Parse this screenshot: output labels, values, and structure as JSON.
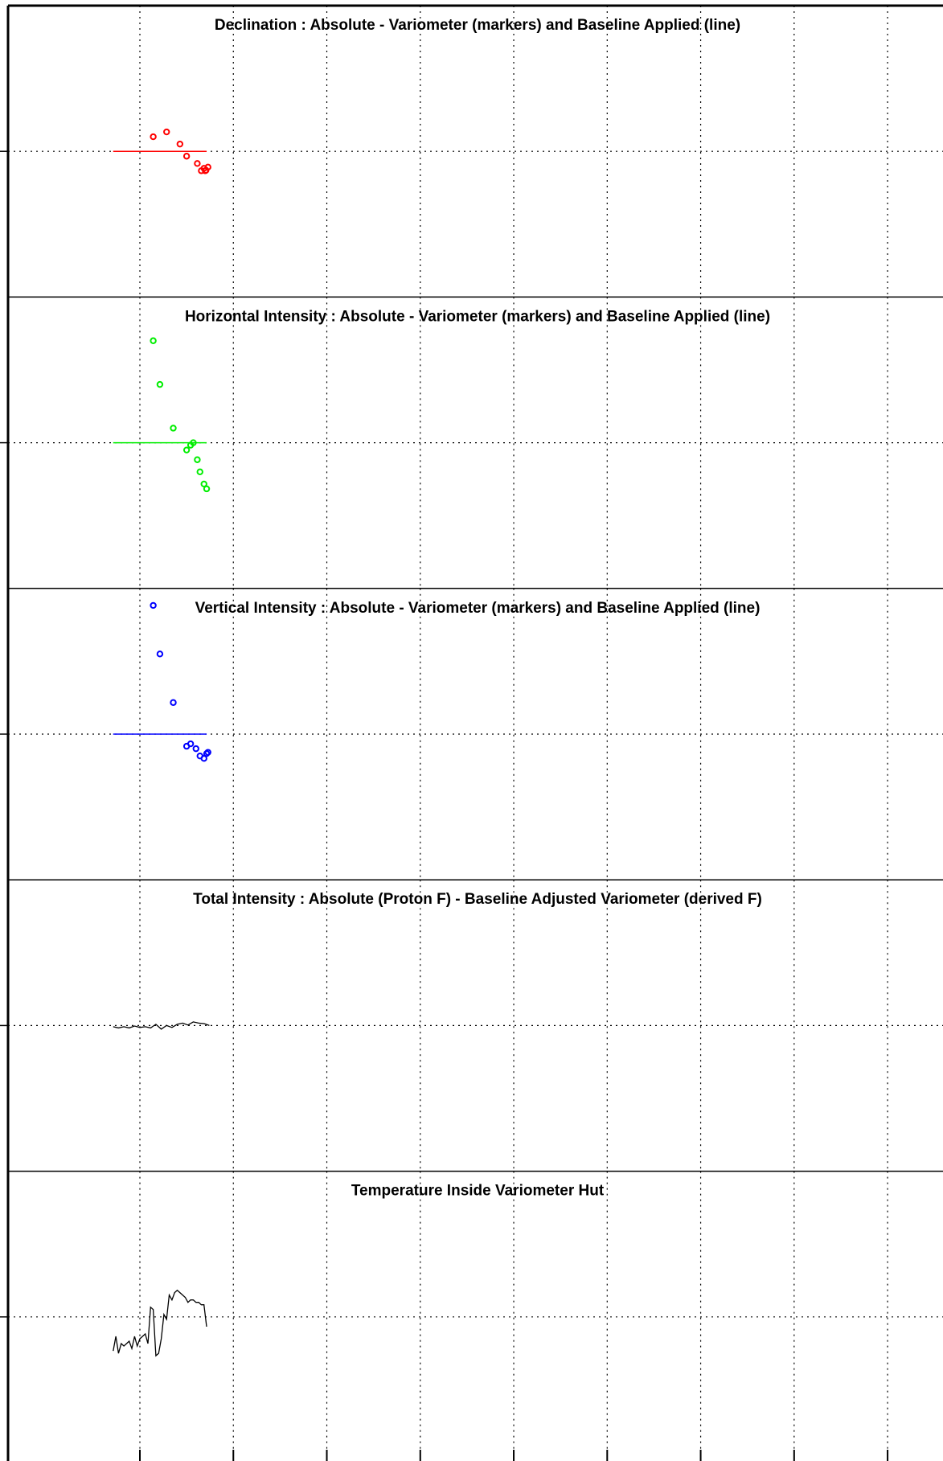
{
  "chart_data": [
    {
      "type": "scatter",
      "title": "Declination : Absolute - Variometer (markers) and Baseline Applied (line)",
      "color": "#ff0000",
      "markers": [
        [
          1.0,
          2.6
        ],
        [
          2.0,
          2.8
        ],
        [
          3.0,
          2.3
        ],
        [
          3.5,
          1.8
        ],
        [
          4.3,
          1.5
        ],
        [
          4.6,
          1.2
        ],
        [
          4.8,
          1.3
        ],
        [
          4.9,
          1.2
        ],
        [
          5.1,
          1.35
        ],
        [
          4.95,
          1.22
        ]
      ],
      "baseline": [
        [
          -2,
          2
        ],
        [
          5,
          2
        ]
      ],
      "ylim": [
        -4,
        8
      ],
      "grid": true
    },
    {
      "type": "scatter",
      "title": "Horizontal Intensity : Absolute - Variometer (markers) and Baseline Applied (line)",
      "color": "#00ee00",
      "markers": [
        [
          1.0,
          6.2
        ],
        [
          1.5,
          4.4
        ],
        [
          2.5,
          2.6
        ],
        [
          3.5,
          1.7
        ],
        [
          3.8,
          1.9
        ],
        [
          4.0,
          2.0
        ],
        [
          4.3,
          1.3
        ],
        [
          4.5,
          0.8
        ],
        [
          4.8,
          0.3
        ],
        [
          5.0,
          0.1
        ]
      ],
      "baseline": [
        [
          -2,
          2
        ],
        [
          5,
          2
        ]
      ],
      "ylim": [
        -4,
        8
      ],
      "grid": true
    },
    {
      "type": "scatter",
      "title": "Vertical Intensity : Absolute - Variometer (markers) and Baseline Applied (line)",
      "color": "#0000ff",
      "markers": [
        [
          1.0,
          7.3
        ],
        [
          1.5,
          5.3
        ],
        [
          2.5,
          3.3
        ],
        [
          3.5,
          1.5
        ],
        [
          3.8,
          1.6
        ],
        [
          4.2,
          1.4
        ],
        [
          4.5,
          1.1
        ],
        [
          4.8,
          1.0
        ],
        [
          5.0,
          1.2
        ],
        [
          5.1,
          1.25
        ]
      ],
      "baseline": [
        [
          -2,
          2
        ],
        [
          5,
          2
        ]
      ],
      "ylim": [
        -4,
        8
      ],
      "grid": true
    },
    {
      "type": "line",
      "title": "Total Intensity : Absolute (Proton F) - Baseline Adjusted Variometer (derived F)",
      "color": "#000000",
      "x": [
        -2.0,
        -1.6,
        -1.2,
        -0.8,
        -0.4,
        0.0,
        0.4,
        0.8,
        1.2,
        1.6,
        2.0,
        2.4,
        2.8,
        3.2,
        3.6,
        4.0,
        4.4,
        4.8,
        5.2
      ],
      "y": [
        1.95,
        1.9,
        1.95,
        1.9,
        1.98,
        1.92,
        1.95,
        1.9,
        2.05,
        1.85,
        2.0,
        1.92,
        2.05,
        2.1,
        2.02,
        2.15,
        2.1,
        2.08,
        2.0
      ],
      "ylim": [
        -4,
        8
      ],
      "grid": true
    },
    {
      "type": "line",
      "title": "Temperature Inside Variometer Hut",
      "color": "#000000",
      "x": [
        -2.0,
        -1.8,
        -1.6,
        -1.4,
        -1.2,
        -1.0,
        -0.8,
        -0.6,
        -0.4,
        -0.2,
        0.0,
        0.2,
        0.4,
        0.6,
        0.8,
        1.0,
        1.2,
        1.4,
        1.6,
        1.8,
        2.0,
        2.2,
        2.4,
        2.6,
        2.8,
        3.0,
        3.2,
        3.4,
        3.6,
        3.8,
        4.0,
        4.2,
        4.4,
        4.6,
        4.8,
        5.0
      ],
      "y": [
        0.6,
        1.2,
        0.5,
        0.9,
        0.8,
        0.9,
        1.0,
        0.7,
        1.2,
        0.8,
        1.1,
        1.2,
        1.3,
        0.9,
        2.4,
        2.3,
        0.4,
        0.5,
        1.1,
        2.1,
        1.9,
        2.9,
        2.7,
        3.0,
        3.1,
        3.0,
        2.9,
        2.8,
        2.6,
        2.7,
        2.7,
        2.6,
        2.6,
        2.5,
        2.5,
        1.6
      ],
      "ylim": [
        -4,
        8
      ],
      "grid": true
    }
  ]
}
